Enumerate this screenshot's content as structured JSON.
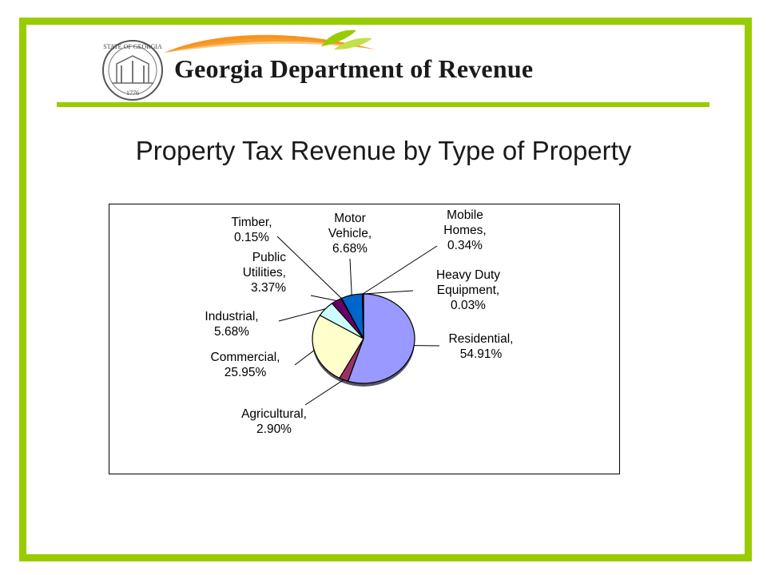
{
  "header": {
    "org_name": "Georgia Department of Revenue",
    "seal_text_top": "STATE OF GEORGIA",
    "seal_text_year": "1776",
    "frame_color": "#99cc00",
    "swoosh_orange": "#f7941d",
    "swoosh_green": "#99cc00"
  },
  "slide": {
    "title": "Property Tax Revenue by Type of Property"
  },
  "chart_data": {
    "type": "pie",
    "title": "Property Tax Revenue by Type of Property",
    "start_angle_deg": 0,
    "direction": "clockwise",
    "slices": [
      {
        "label": "Residential",
        "value": 54.91,
        "display": "54.91%",
        "color": "#9999ff",
        "lines": [
          "Residential,",
          "54.91%"
        ]
      },
      {
        "label": "Agricultural",
        "value": 2.9,
        "display": "2.90%",
        "color": "#993366",
        "lines": [
          "Agricultural,",
          "2.90%"
        ]
      },
      {
        "label": "Commercial",
        "value": 25.95,
        "display": "25.95%",
        "color": "#ffffcc",
        "lines": [
          "Commercial,",
          "25.95%"
        ]
      },
      {
        "label": "Industrial",
        "value": 5.68,
        "display": "5.68%",
        "color": "#ccffff",
        "lines": [
          "Industrial,",
          "5.68%"
        ]
      },
      {
        "label": "Public Utilities",
        "value": 3.37,
        "display": "3.37%",
        "color": "#660066",
        "lines": [
          "Public",
          "Utilities,",
          "3.37%"
        ]
      },
      {
        "label": "Timber",
        "value": 0.15,
        "display": "0.15%",
        "color": "#ff8080",
        "lines": [
          "Timber,",
          "0.15%"
        ]
      },
      {
        "label": "Motor Vehicle",
        "value": 6.68,
        "display": "6.68%",
        "color": "#0066cc",
        "lines": [
          "Motor",
          "Vehicle,",
          "6.68%"
        ]
      },
      {
        "label": "Mobile Homes",
        "value": 0.34,
        "display": "0.34%",
        "color": "#ccccff",
        "lines": [
          "Mobile",
          "Homes,",
          "0.34%"
        ]
      },
      {
        "label": "Heavy Duty Equipment",
        "value": 0.03,
        "display": "0.03%",
        "color": "#000080",
        "lines": [
          "Heavy Duty",
          "Equipment,",
          "0.03%"
        ]
      }
    ],
    "legend": "none",
    "data_labels": "outside-with-leader-lines"
  }
}
